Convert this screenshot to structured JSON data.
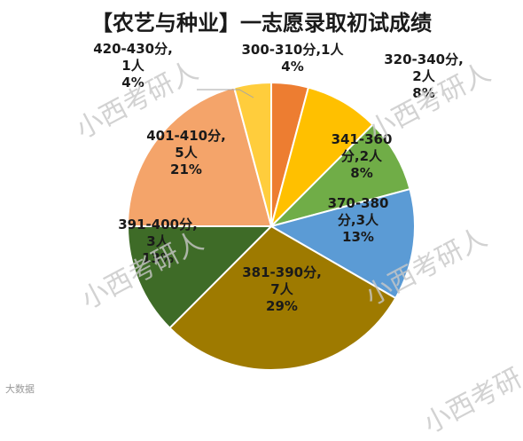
{
  "chart_data": {
    "type": "pie",
    "title": "【农艺与种业】一志愿录取初试成绩",
    "slices": [
      {
        "label": "300-310分,1人",
        "count": 1,
        "percent": "4%",
        "color": "#ED7D31",
        "label_color": "#1a1a1a"
      },
      {
        "label": "320-340分,2人",
        "count": 2,
        "percent": "8%",
        "color": "#FFC000",
        "label_color": "#1a1a1a"
      },
      {
        "label": "341-360分,2人",
        "count": 2,
        "percent": "8%",
        "color": "#70AD47",
        "label_color": "#1a1a1a"
      },
      {
        "label": "370-380分,3人",
        "count": 3,
        "percent": "13%",
        "color": "#5B9BD5",
        "label_color": "#1a1a1a"
      },
      {
        "label": "381-390分,7人",
        "count": 7,
        "percent": "29%",
        "color": "#9E7A00",
        "label_color": "#1a1a1a"
      },
      {
        "label": "391-400分,3人",
        "count": 3,
        "percent": "13%",
        "color": "#3E6B27",
        "label_color": "#1a1a1a"
      },
      {
        "label": "401-410分,5人",
        "count": 5,
        "percent": "21%",
        "color": "#F4A46A",
        "label_color": "#1a1a1a"
      },
      {
        "label": "420-430分,1人",
        "count": 1,
        "percent": "4%",
        "color": "#FFCD3C",
        "label_color": "#1a1a1a"
      }
    ]
  },
  "watermark": "小西考研人",
  "logo_text": "大数据"
}
